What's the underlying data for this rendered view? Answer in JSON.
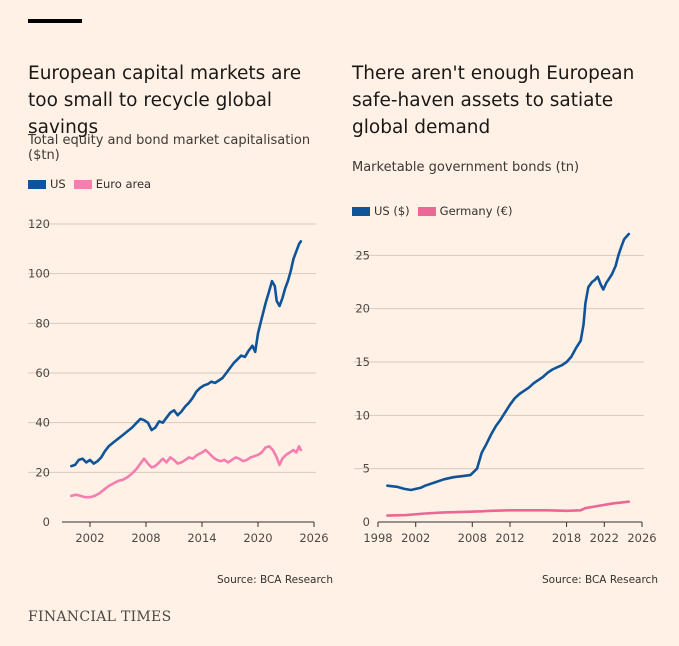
{
  "brand": "FINANCIAL TIMES",
  "colors": {
    "background": "#fff1e5",
    "us": "#0f5499",
    "euro": "#f57eb0",
    "germany": "#eb6795",
    "grid": "#d6cbc1",
    "axis": "#33302e"
  },
  "left": {
    "title": "European capital markets are too small to recycle global savings",
    "subtitle": "Total equity and bond market capitalisation ($tn)",
    "legend": [
      "US",
      "Euro area"
    ],
    "source": "Source: BCA Research"
  },
  "right": {
    "title": "There aren't enough European safe-haven assets to satiate global demand",
    "subtitle": "Marketable government bonds (tn)",
    "legend": [
      "US ($)",
      "Germany (€)"
    ],
    "source": "Source: BCA Research"
  },
  "chart_data": [
    {
      "type": "line",
      "title": "European capital markets are too small to recycle global savings",
      "ylabel": "Total equity and bond market capitalisation ($tn)",
      "xlim": [
        1999,
        2026
      ],
      "ylim": [
        0,
        120
      ],
      "x_ticks": [
        2002,
        2008,
        2014,
        2020,
        2026
      ],
      "y_ticks": [
        0,
        20,
        40,
        60,
        80,
        100,
        120
      ],
      "grid": true,
      "legend_position": "top-left",
      "series": [
        {
          "name": "US",
          "color": "#0f5499",
          "points": [
            [
              2000.0,
              22.5
            ],
            [
              2000.4,
              23
            ],
            [
              2000.8,
              25
            ],
            [
              2001.2,
              25.5
            ],
            [
              2001.6,
              24
            ],
            [
              2002.0,
              25
            ],
            [
              2002.4,
              23.5
            ],
            [
              2002.8,
              24.5
            ],
            [
              2003.2,
              26
            ],
            [
              2003.6,
              28.5
            ],
            [
              2004.0,
              30.5
            ],
            [
              2004.5,
              32
            ],
            [
              2005.0,
              33.5
            ],
            [
              2005.5,
              35
            ],
            [
              2006.0,
              36.5
            ],
            [
              2006.5,
              38
            ],
            [
              2007.0,
              40
            ],
            [
              2007.4,
              41.5
            ],
            [
              2007.8,
              41
            ],
            [
              2008.2,
              40
            ],
            [
              2008.6,
              37
            ],
            [
              2009.0,
              38
            ],
            [
              2009.4,
              40.5
            ],
            [
              2009.8,
              40
            ],
            [
              2010.2,
              42
            ],
            [
              2010.6,
              44
            ],
            [
              2011.0,
              45
            ],
            [
              2011.4,
              43
            ],
            [
              2011.8,
              44.5
            ],
            [
              2012.2,
              46.5
            ],
            [
              2012.6,
              48
            ],
            [
              2013.0,
              50
            ],
            [
              2013.4,
              52.5
            ],
            [
              2013.8,
              54
            ],
            [
              2014.2,
              55
            ],
            [
              2014.6,
              55.5
            ],
            [
              2015.0,
              56.5
            ],
            [
              2015.4,
              56
            ],
            [
              2015.8,
              57
            ],
            [
              2016.2,
              58
            ],
            [
              2016.6,
              60
            ],
            [
              2017.0,
              62
            ],
            [
              2017.4,
              64
            ],
            [
              2017.8,
              65.5
            ],
            [
              2018.2,
              67
            ],
            [
              2018.6,
              66.5
            ],
            [
              2019.0,
              69
            ],
            [
              2019.4,
              71
            ],
            [
              2019.7,
              68.5
            ],
            [
              2020.0,
              76
            ],
            [
              2020.4,
              82
            ],
            [
              2020.8,
              88
            ],
            [
              2021.2,
              93
            ],
            [
              2021.5,
              97
            ],
            [
              2021.8,
              95
            ],
            [
              2022.0,
              89
            ],
            [
              2022.3,
              87
            ],
            [
              2022.6,
              90
            ],
            [
              2022.9,
              94
            ],
            [
              2023.2,
              97
            ],
            [
              2023.5,
              101
            ],
            [
              2023.8,
              106
            ],
            [
              2024.1,
              109
            ],
            [
              2024.4,
              112
            ],
            [
              2024.6,
              113
            ]
          ]
        },
        {
          "name": "Euro area",
          "color": "#f57eb0",
          "points": [
            [
              2000.0,
              10.5
            ],
            [
              2000.5,
              11
            ],
            [
              2001.0,
              10.5
            ],
            [
              2001.5,
              10
            ],
            [
              2002.0,
              10
            ],
            [
              2002.5,
              10.5
            ],
            [
              2003.0,
              11.5
            ],
            [
              2003.5,
              13
            ],
            [
              2004.0,
              14.5
            ],
            [
              2004.5,
              15.5
            ],
            [
              2005.0,
              16.5
            ],
            [
              2005.5,
              17
            ],
            [
              2006.0,
              18
            ],
            [
              2006.5,
              19.5
            ],
            [
              2007.0,
              21.5
            ],
            [
              2007.5,
              24
            ],
            [
              2007.8,
              25.5
            ],
            [
              2008.2,
              23.5
            ],
            [
              2008.6,
              22
            ],
            [
              2009.0,
              22.5
            ],
            [
              2009.4,
              24
            ],
            [
              2009.8,
              25.5
            ],
            [
              2010.2,
              24
            ],
            [
              2010.6,
              26
            ],
            [
              2011.0,
              25
            ],
            [
              2011.4,
              23.5
            ],
            [
              2011.8,
              24
            ],
            [
              2012.2,
              25
            ],
            [
              2012.6,
              26
            ],
            [
              2013.0,
              25.5
            ],
            [
              2013.5,
              27
            ],
            [
              2014.0,
              28
            ],
            [
              2014.4,
              29
            ],
            [
              2014.8,
              27.5
            ],
            [
              2015.2,
              26
            ],
            [
              2015.6,
              25
            ],
            [
              2016.0,
              24.5
            ],
            [
              2016.4,
              25
            ],
            [
              2016.8,
              24
            ],
            [
              2017.2,
              25
            ],
            [
              2017.6,
              26
            ],
            [
              2018.0,
              25.5
            ],
            [
              2018.4,
              24.5
            ],
            [
              2018.8,
              25
            ],
            [
              2019.2,
              26
            ],
            [
              2019.6,
              26.5
            ],
            [
              2020.0,
              27
            ],
            [
              2020.4,
              28
            ],
            [
              2020.8,
              30
            ],
            [
              2021.2,
              30.5
            ],
            [
              2021.6,
              29
            ],
            [
              2022.0,
              26
            ],
            [
              2022.3,
              23
            ],
            [
              2022.6,
              25.5
            ],
            [
              2023.0,
              27
            ],
            [
              2023.4,
              28
            ],
            [
              2023.8,
              29
            ],
            [
              2024.1,
              28
            ],
            [
              2024.4,
              30.5
            ],
            [
              2024.6,
              29
            ]
          ]
        }
      ]
    },
    {
      "type": "line",
      "title": "There aren't enough European safe-haven assets to satiate global demand",
      "ylabel": "Marketable government bonds (tn)",
      "xlim": [
        1998,
        2026
      ],
      "ylim": [
        0,
        27
      ],
      "x_ticks": [
        1998,
        2002,
        2008,
        2012,
        2018,
        2022,
        2026
      ],
      "y_ticks": [
        0,
        5,
        10,
        15,
        20,
        25
      ],
      "grid": true,
      "legend_position": "top-left",
      "series": [
        {
          "name": "US ($)",
          "color": "#0f5499",
          "points": [
            [
              1999.0,
              3.4
            ],
            [
              2000.0,
              3.3
            ],
            [
              2000.8,
              3.1
            ],
            [
              2001.5,
              3.0
            ],
            [
              2002.0,
              3.1
            ],
            [
              2002.5,
              3.2
            ],
            [
              2003.0,
              3.4
            ],
            [
              2004.0,
              3.7
            ],
            [
              2005.0,
              4.0
            ],
            [
              2006.0,
              4.2
            ],
            [
              2007.0,
              4.3
            ],
            [
              2007.8,
              4.4
            ],
            [
              2008.5,
              5.0
            ],
            [
              2009.0,
              6.5
            ],
            [
              2009.5,
              7.3
            ],
            [
              2010.0,
              8.2
            ],
            [
              2010.5,
              9.0
            ],
            [
              2011.0,
              9.6
            ],
            [
              2011.5,
              10.3
            ],
            [
              2012.0,
              11.0
            ],
            [
              2012.5,
              11.6
            ],
            [
              2013.0,
              12.0
            ],
            [
              2013.5,
              12.3
            ],
            [
              2014.0,
              12.6
            ],
            [
              2014.5,
              13.0
            ],
            [
              2015.0,
              13.3
            ],
            [
              2015.5,
              13.6
            ],
            [
              2016.0,
              14.0
            ],
            [
              2016.5,
              14.3
            ],
            [
              2017.0,
              14.5
            ],
            [
              2017.5,
              14.7
            ],
            [
              2018.0,
              15.0
            ],
            [
              2018.5,
              15.5
            ],
            [
              2019.0,
              16.3
            ],
            [
              2019.5,
              17.0
            ],
            [
              2019.8,
              18.5
            ],
            [
              2020.0,
              20.5
            ],
            [
              2020.3,
              22.0
            ],
            [
              2020.7,
              22.5
            ],
            [
              2021.0,
              22.7
            ],
            [
              2021.3,
              23.0
            ],
            [
              2021.6,
              22.3
            ],
            [
              2021.9,
              21.8
            ],
            [
              2022.2,
              22.4
            ],
            [
              2022.5,
              22.8
            ],
            [
              2022.8,
              23.2
            ],
            [
              2023.2,
              24.0
            ],
            [
              2023.5,
              25.0
            ],
            [
              2023.8,
              25.8
            ],
            [
              2024.1,
              26.5
            ],
            [
              2024.4,
              26.8
            ],
            [
              2024.6,
              27.0
            ]
          ]
        },
        {
          "name": "Germany (€)",
          "color": "#eb6795",
          "points": [
            [
              1999.0,
              0.6
            ],
            [
              2001.0,
              0.65
            ],
            [
              2003.0,
              0.8
            ],
            [
              2005.0,
              0.9
            ],
            [
              2007.0,
              0.95
            ],
            [
              2009.0,
              1.0
            ],
            [
              2010.0,
              1.05
            ],
            [
              2012.0,
              1.1
            ],
            [
              2014.0,
              1.1
            ],
            [
              2016.0,
              1.1
            ],
            [
              2018.0,
              1.05
            ],
            [
              2019.5,
              1.1
            ],
            [
              2020.0,
              1.3
            ],
            [
              2021.0,
              1.45
            ],
            [
              2022.0,
              1.6
            ],
            [
              2023.0,
              1.75
            ],
            [
              2024.0,
              1.85
            ],
            [
              2024.6,
              1.9
            ]
          ]
        }
      ]
    }
  ]
}
